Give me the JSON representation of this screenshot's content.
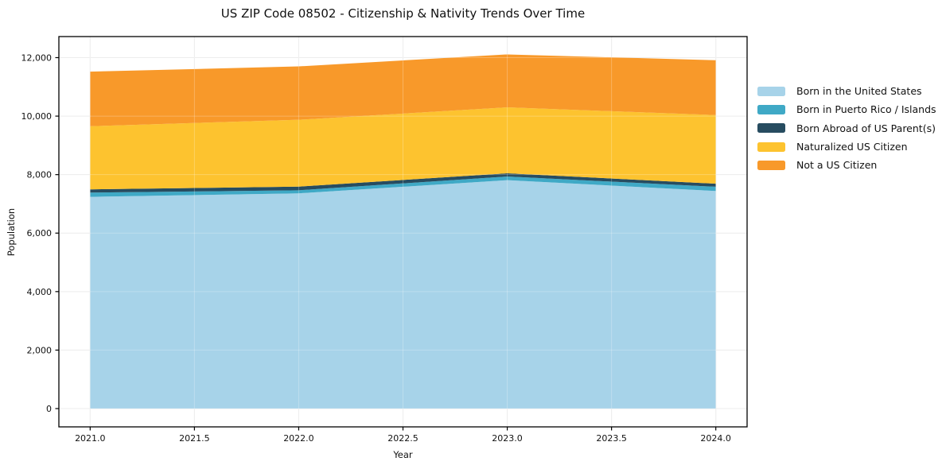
{
  "chart_data": {
    "type": "area",
    "stacked": true,
    "title": "US ZIP Code 08502 - Citizenship & Nativity Trends Over Time",
    "xlabel": "Year",
    "ylabel": "Population",
    "x": [
      2021,
      2022,
      2023,
      2024
    ],
    "series": [
      {
        "name": "Born in the United States",
        "color": "#a7d3e9",
        "values": [
          7240,
          7360,
          7810,
          7440
        ]
      },
      {
        "name": "Born in Puerto Rico / Islands",
        "color": "#3fa9c6",
        "values": [
          145,
          105,
          125,
          145
        ]
      },
      {
        "name": "Born Abroad of US Parent(s)",
        "color": "#274c60",
        "values": [
          110,
          125,
          110,
          105
        ]
      },
      {
        "name": "Naturalized US Citizen",
        "color": "#fdc32f",
        "values": [
          2160,
          2285,
          2255,
          2345
        ]
      },
      {
        "name": "Not a US Citizen",
        "color": "#f8992a",
        "values": [
          1865,
          1825,
          1810,
          1875
        ]
      }
    ],
    "stack_totals": [
      11520,
      11700,
      12110,
      11910
    ],
    "xlim": [
      2020.85,
      2024.15
    ],
    "ylim": [
      -625,
      12720
    ],
    "xticks": [
      2021.0,
      2021.5,
      2022.0,
      2022.5,
      2023.0,
      2023.5,
      2024.0
    ],
    "xtick_labels": [
      "2021.0",
      "2021.5",
      "2022.0",
      "2022.5",
      "2023.0",
      "2023.5",
      "2024.0"
    ],
    "yticks": [
      0,
      2000,
      4000,
      6000,
      8000,
      10000,
      12000
    ],
    "ytick_labels": [
      "0",
      "2,000",
      "4,000",
      "6,000",
      "8,000",
      "10,000",
      "12,000"
    ],
    "grid": true,
    "legend_position": "right-outside"
  },
  "style": {
    "grid_color": "#e7e7e7",
    "grid_overlay_color": "#ffffff",
    "grid_overlay_opacity": "0.25",
    "spine_color": "#000000",
    "tick_color": "#000000",
    "tick_label_color": "#111111",
    "background": "#ffffff"
  }
}
